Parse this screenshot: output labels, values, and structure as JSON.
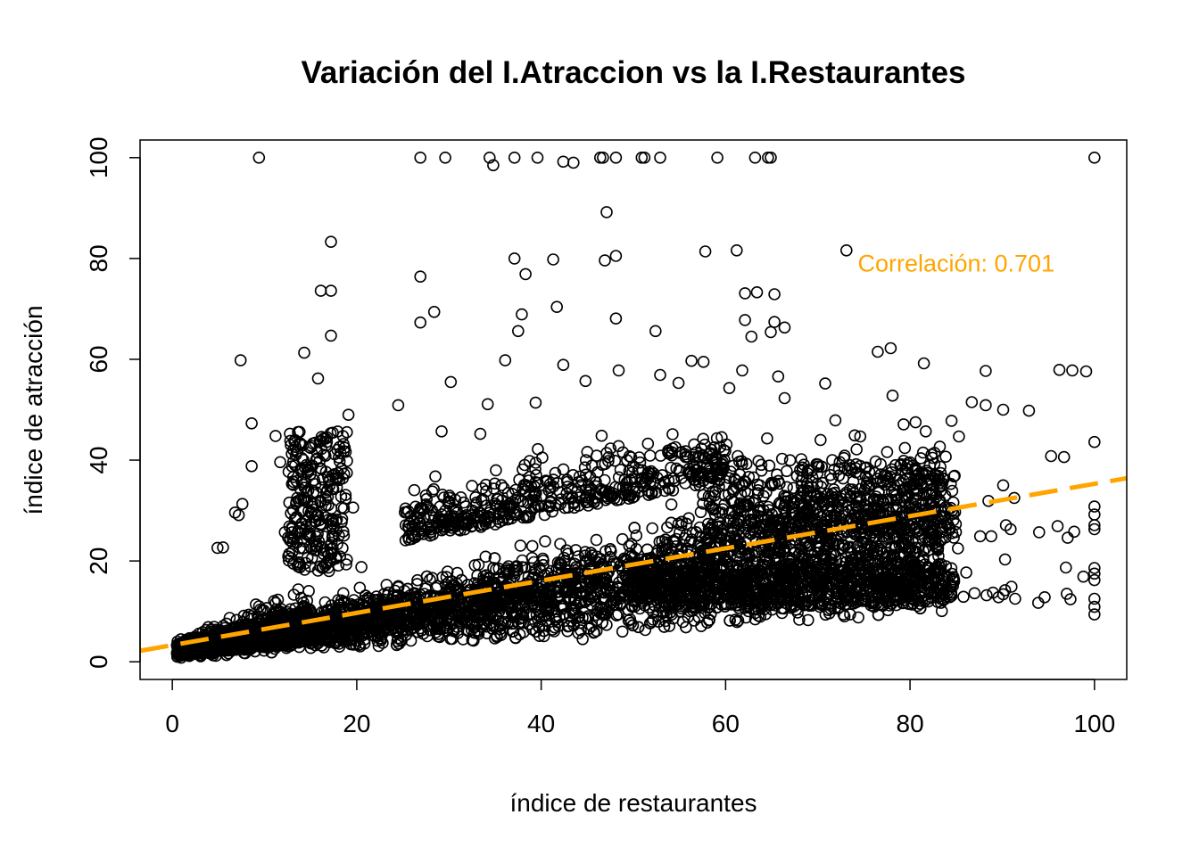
{
  "chart_data": {
    "type": "scatter",
    "title": "Variación del I.Atraccion vs la I.Restaurantes",
    "xlabel": "índice de restaurantes",
    "ylabel": "índice de atracción",
    "xlim": [
      -3.5,
      103.5
    ],
    "ylim": [
      -3.5,
      103.5
    ],
    "x_ticks": [
      0,
      20,
      40,
      60,
      80,
      100
    ],
    "y_ticks": [
      0,
      20,
      40,
      60,
      80,
      100
    ],
    "x_tick_labels": [
      "0",
      "20",
      "40",
      "60",
      "80",
      "100"
    ],
    "y_tick_labels": [
      "0",
      "20",
      "40",
      "60",
      "80",
      "100"
    ],
    "grid": false,
    "legend": "none",
    "marker": "open-circle",
    "marker_color": "#000000",
    "fit_line": {
      "style": "dashed",
      "color": "#FFA500",
      "intercept": 3.3,
      "slope": 0.32
    },
    "annotation": {
      "text": "Correlación: 0.701",
      "x": 85,
      "y": 79,
      "color": "#FFA500"
    },
    "outliers": [
      [
        9.4,
        100
      ],
      [
        26.9,
        100
      ],
      [
        29.6,
        100
      ],
      [
        34.4,
        100
      ],
      [
        34.8,
        98.5
      ],
      [
        37.1,
        100
      ],
      [
        39.6,
        100
      ],
      [
        42.4,
        99.2
      ],
      [
        43.5,
        99
      ],
      [
        46.4,
        100
      ],
      [
        46.7,
        100
      ],
      [
        48.1,
        100
      ],
      [
        50.9,
        100
      ],
      [
        51.2,
        100
      ],
      [
        52.9,
        100
      ],
      [
        59.1,
        100
      ],
      [
        63.2,
        100
      ],
      [
        64.6,
        100
      ],
      [
        64.9,
        100
      ],
      [
        100,
        100
      ],
      [
        47.1,
        89.2
      ],
      [
        17.2,
        83.3
      ],
      [
        73.1,
        81.6
      ],
      [
        57.8,
        81.4
      ],
      [
        61.2,
        81.6
      ],
      [
        37.1,
        80
      ],
      [
        41.3,
        79.8
      ],
      [
        46.9,
        79.6
      ],
      [
        48.1,
        80.5
      ],
      [
        38.3,
        76.9
      ],
      [
        26.9,
        76.4
      ],
      [
        16.1,
        73.6
      ],
      [
        17.2,
        73.6
      ],
      [
        62.1,
        73.1
      ],
      [
        63.4,
        73.3
      ],
      [
        65.3,
        72.9
      ],
      [
        41.7,
        70.4
      ],
      [
        28.4,
        69.4
      ],
      [
        37.9,
        68.9
      ],
      [
        26.9,
        67.3
      ],
      [
        48.1,
        68.1
      ],
      [
        62.1,
        67.8
      ],
      [
        65.3,
        67.4
      ],
      [
        66.4,
        66.3
      ],
      [
        37.5,
        65.6
      ],
      [
        52.4,
        65.6
      ],
      [
        64.9,
        65.4
      ],
      [
        17.2,
        64.7
      ],
      [
        62.8,
        64.5
      ],
      [
        7.4,
        59.8
      ],
      [
        14.3,
        61.3
      ],
      [
        36.1,
        59.8
      ],
      [
        42.4,
        58.9
      ],
      [
        48.4,
        57.8
      ],
      [
        56.3,
        59.7
      ],
      [
        57.6,
        59.5
      ],
      [
        61.8,
        57.8
      ],
      [
        76.5,
        61.5
      ],
      [
        77.9,
        62.2
      ],
      [
        81.5,
        59.2
      ],
      [
        88.2,
        57.7
      ],
      [
        96.2,
        57.9
      ],
      [
        97.6,
        57.8
      ],
      [
        99.1,
        57.6
      ],
      [
        15.8,
        56.2
      ],
      [
        30.2,
        55.5
      ],
      [
        44.8,
        55.7
      ],
      [
        52.9,
        56.9
      ],
      [
        54.9,
        55.3
      ],
      [
        60.4,
        54.3
      ],
      [
        65.7,
        56.6
      ],
      [
        78.1,
        52.8
      ],
      [
        86.7,
        51.5
      ],
      [
        88.2,
        50.9
      ],
      [
        90.1,
        50
      ],
      [
        92.9,
        49.8
      ],
      [
        19.1,
        49
      ],
      [
        24.5,
        50.9
      ],
      [
        34.2,
        51.1
      ],
      [
        39.4,
        51.4
      ],
      [
        8.6,
        47.3
      ],
      [
        11.2,
        44.8
      ],
      [
        13.8,
        45.6
      ],
      [
        29.2,
        45.7
      ],
      [
        33.4,
        45.2
      ],
      [
        81.7,
        45.7
      ],
      [
        85.3,
        44.7
      ],
      [
        100,
        43.6
      ],
      [
        8.6,
        38.8
      ],
      [
        11.7,
        39.6
      ],
      [
        15.2,
        38.9
      ],
      [
        95.3,
        40.8
      ],
      [
        96.7,
        40.6
      ],
      [
        90.1,
        35
      ],
      [
        91.3,
        32.5
      ],
      [
        88.5,
        31.9
      ],
      [
        100,
        30.8
      ],
      [
        100,
        29.2
      ],
      [
        100,
        27.1
      ],
      [
        100,
        26.3
      ],
      [
        96,
        26.9
      ],
      [
        97.1,
        24.6
      ],
      [
        97.8,
        25.8
      ],
      [
        94,
        25.7
      ],
      [
        87.6,
        24.9
      ],
      [
        88.8,
        24.9
      ],
      [
        90.4,
        27.1
      ],
      [
        90.9,
        26.3
      ],
      [
        100,
        18.6
      ],
      [
        100,
        17.5
      ],
      [
        100,
        16.2
      ],
      [
        98.8,
        16.9
      ],
      [
        96.9,
        18.7
      ],
      [
        93.9,
        11.7
      ],
      [
        94.6,
        12.8
      ],
      [
        97,
        13.5
      ],
      [
        97.4,
        12.4
      ],
      [
        100,
        12.5
      ],
      [
        100,
        10.9
      ],
      [
        100,
        9.4
      ],
      [
        90.3,
        20.3
      ],
      [
        90.1,
        13.4
      ],
      [
        91.4,
        12.5
      ],
      [
        91,
        14.9
      ],
      [
        90.3,
        14.2
      ],
      [
        89,
        13.7
      ],
      [
        86.1,
        17.7
      ],
      [
        84.7,
        16.8
      ],
      [
        83.4,
        16.2
      ],
      [
        82.2,
        13.5
      ],
      [
        85.8,
        12.9
      ],
      [
        87,
        13.6
      ],
      [
        88.3,
        13.2
      ],
      [
        89.6,
        12.8
      ],
      [
        47.1,
        41.4
      ],
      [
        55.2,
        41.6
      ],
      [
        60.1,
        43.1
      ],
      [
        70.3,
        44
      ],
      [
        74.6,
        44.7
      ],
      [
        64.5,
        44.3
      ],
      [
        40.3,
        5.1
      ],
      [
        44.5,
        4.5
      ],
      [
        53.9,
        7.1
      ],
      [
        58.2,
        8.2
      ],
      [
        35.2,
        4.9
      ],
      [
        20.5,
        18.8
      ],
      [
        13.1,
        24.3
      ],
      [
        12.2,
        25.7
      ],
      [
        25.3,
        27.1
      ],
      [
        6.8,
        29.6
      ],
      [
        7.6,
        31.3
      ],
      [
        7.2,
        29.1
      ],
      [
        5.5,
        22.7
      ],
      [
        4.9,
        22.6
      ],
      [
        19.6,
        30.6
      ],
      [
        63.3,
        10.4
      ],
      [
        72.2,
        10.6
      ],
      [
        76.1,
        10.9
      ],
      [
        78,
        11.5
      ],
      [
        81.1,
        10.6
      ],
      [
        69.5,
        17.1
      ],
      [
        73.7,
        15.7
      ],
      [
        75.4,
        17.2
      ],
      [
        85.2,
        22.5
      ],
      [
        83,
        22.3
      ],
      [
        66.4,
        52.3
      ],
      [
        70.8,
        55.2
      ],
      [
        71.9,
        47.9
      ],
      [
        74,
        44.9
      ],
      [
        80.6,
        47.5
      ],
      [
        84.5,
        47.8
      ],
      [
        79.3,
        47.1
      ]
    ]
  }
}
